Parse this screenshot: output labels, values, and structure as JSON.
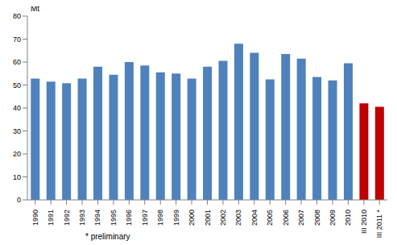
{
  "chart_data": {
    "type": "bar",
    "ylabel": "Mt",
    "annotation": "* preliminary",
    "categories": [
      "1990",
      "1991",
      "1992",
      "1993",
      "1994",
      "1995",
      "1996",
      "1997",
      "1998",
      "1999",
      "2000",
      "2001",
      "2002",
      "2003",
      "2004",
      "2005",
      "2006",
      "2007",
      "2008",
      "2009",
      "2010",
      "III 2010",
      "III 2011 *"
    ],
    "values": [
      52.8,
      51.5,
      50.8,
      52.8,
      58,
      54.5,
      60,
      58.5,
      55.5,
      55,
      52.8,
      58,
      60.5,
      68,
      64,
      52.5,
      63.5,
      61.5,
      53.5,
      52,
      59.5,
      42,
      40.5
    ],
    "colors": [
      "#4f81bd",
      "#4f81bd",
      "#4f81bd",
      "#4f81bd",
      "#4f81bd",
      "#4f81bd",
      "#4f81bd",
      "#4f81bd",
      "#4f81bd",
      "#4f81bd",
      "#4f81bd",
      "#4f81bd",
      "#4f81bd",
      "#4f81bd",
      "#4f81bd",
      "#4f81bd",
      "#4f81bd",
      "#4f81bd",
      "#4f81bd",
      "#4f81bd",
      "#4f81bd",
      "#c00000",
      "#c00000"
    ],
    "ylim": [
      0,
      80
    ],
    "yticks": [
      0,
      10,
      20,
      30,
      40,
      50,
      60,
      70,
      80
    ],
    "grid": false
  }
}
